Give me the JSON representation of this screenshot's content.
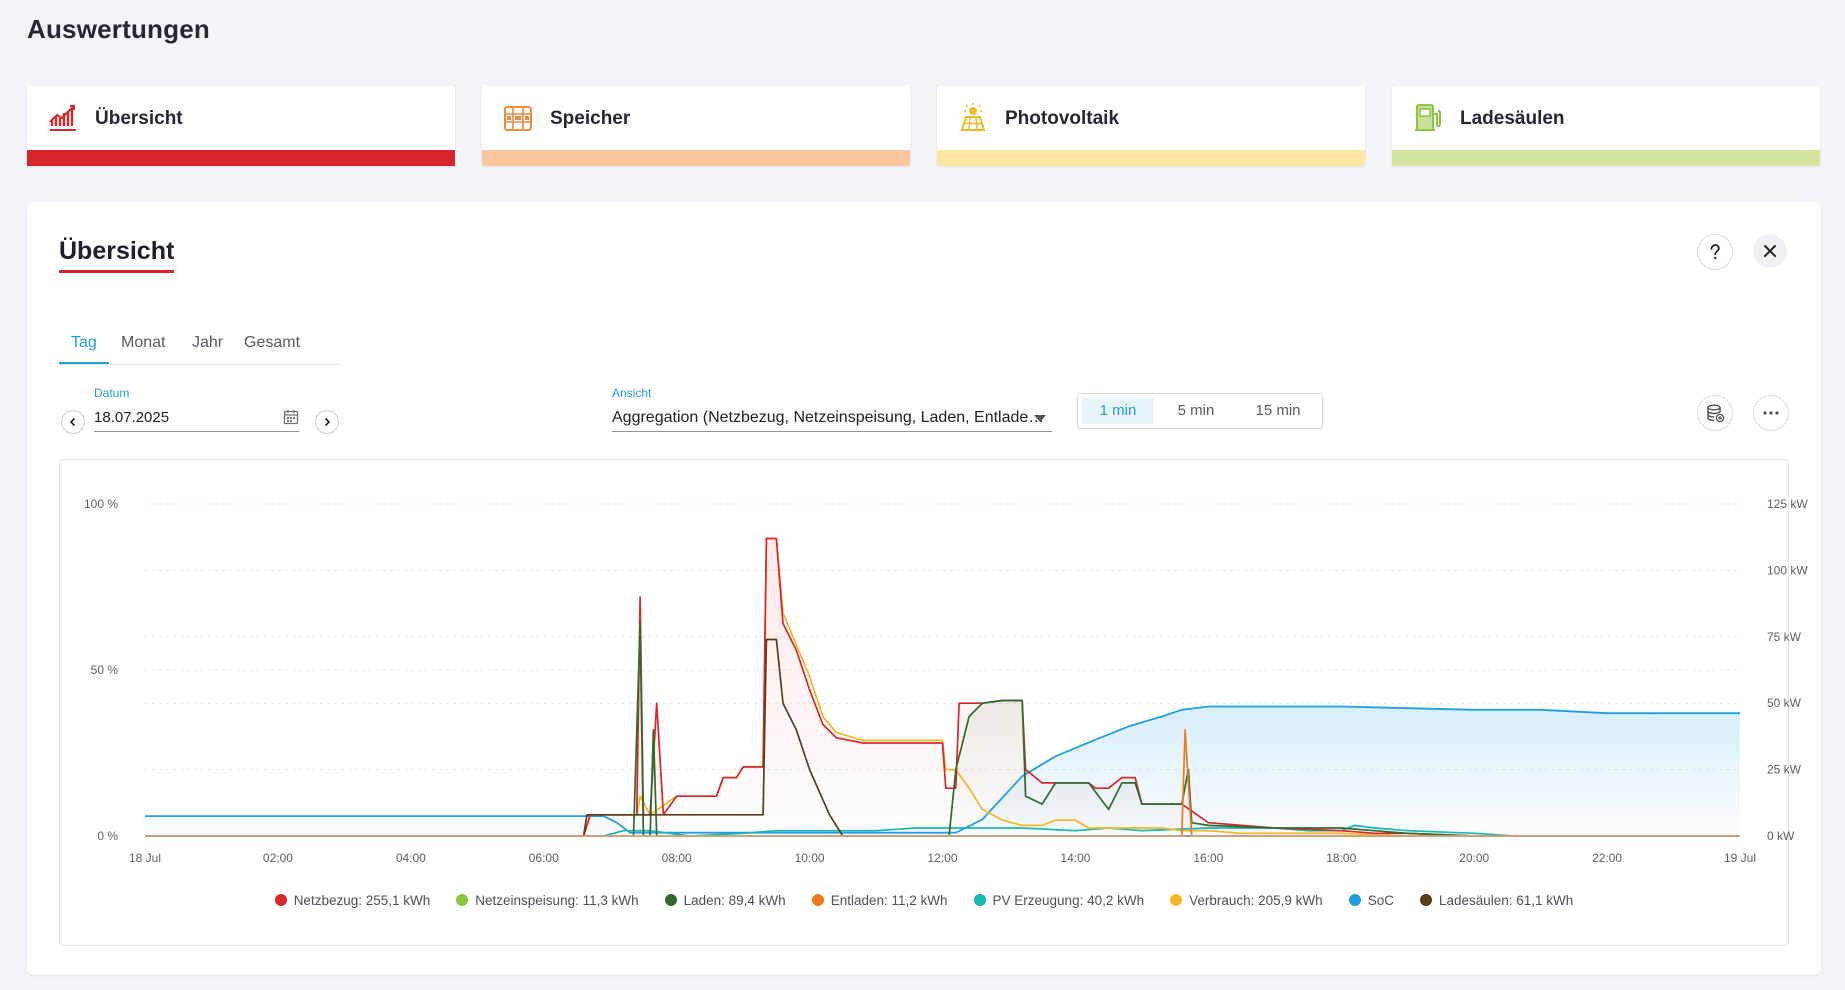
{
  "page": {
    "title": "Auswertungen"
  },
  "cards": [
    {
      "label": "Übersicht",
      "icon": "chart-line-icon",
      "color": "#d9262b",
      "bar_color": "#d9262b"
    },
    {
      "label": "Speicher",
      "icon": "battery-storage-icon",
      "color": "#f08a3c",
      "bar_color": "#fbc69c"
    },
    {
      "label": "Photovoltaik",
      "icon": "solar-panel-icon",
      "color": "#f4b625",
      "bar_color": "#fde5a2"
    },
    {
      "label": "Ladesäulen",
      "icon": "charging-station-icon",
      "color": "#8cc63e",
      "bar_color": "#d2e6a0"
    }
  ],
  "panel": {
    "title": "Übersicht",
    "help_icon": "question-icon",
    "close_icon": "close-icon",
    "tabs": [
      "Tag",
      "Monat",
      "Jahr",
      "Gesamt"
    ],
    "active_tab": "Tag",
    "date": {
      "label": "Datum",
      "value": "18.07.2025",
      "icon": "calendar-icon"
    },
    "view": {
      "label": "Ansicht",
      "value": "Aggregation (Netzbezug, Netzeinspeisung, Laden, Entlade…"
    },
    "resolutions": [
      "1 min",
      "5 min",
      "15 min"
    ],
    "active_resolution": "1 min",
    "db_icon": "database-icon",
    "more_icon": "more-icon"
  },
  "chart_data": {
    "type": "line",
    "x_ticks": [
      "18 Jul",
      "02:00",
      "04:00",
      "06:00",
      "08:00",
      "10:00",
      "12:00",
      "14:00",
      "16:00",
      "18:00",
      "20:00",
      "22:00",
      "19 Jul"
    ],
    "y_left_ticks": [
      "0 %",
      "50 %",
      "100 %"
    ],
    "y_right_ticks": [
      "0 kW",
      "25 kW",
      "50 kW",
      "75 kW",
      "100 kW",
      "125 kW"
    ],
    "y_left_range": [
      0,
      100
    ],
    "y_right_range": [
      0,
      125
    ],
    "grid": true,
    "legend_position": "bottom",
    "legend": [
      {
        "label": "Netzbezug: 255,1 kWh",
        "color": "#d9262b"
      },
      {
        "label": "Netzeinspeisung: 11,3 kWh",
        "color": "#8cc63e"
      },
      {
        "label": "Laden: 89,4 kWh",
        "color": "#2e6b2e"
      },
      {
        "label": "Entladen: 11,2 kWh",
        "color": "#f07a1a"
      },
      {
        "label": "PV Erzeugung: 40,2 kWh",
        "color": "#18b5b5"
      },
      {
        "label": "Verbrauch: 205,9 kWh",
        "color": "#f4b625"
      },
      {
        "label": "SoC",
        "color": "#1f9fe0"
      },
      {
        "label": "Ladesäulen: 61,1 kWh",
        "color": "#5a3e1c"
      }
    ],
    "series": [
      {
        "name": "SoC",
        "axis": "left",
        "color": "#1f9fe0",
        "points": [
          [
            0,
            6
          ],
          [
            6.9,
            6
          ],
          [
            7.1,
            4
          ],
          [
            7.3,
            1
          ],
          [
            9.8,
            1
          ],
          [
            12.2,
            1
          ],
          [
            12.6,
            5
          ],
          [
            13.2,
            18
          ],
          [
            13.7,
            24
          ],
          [
            14.3,
            29
          ],
          [
            14.8,
            33
          ],
          [
            15.3,
            36
          ],
          [
            15.6,
            38
          ],
          [
            16,
            39
          ],
          [
            17,
            39
          ],
          [
            18,
            39
          ],
          [
            19,
            38.5
          ],
          [
            20,
            38
          ],
          [
            21,
            38
          ],
          [
            22,
            37
          ],
          [
            24,
            37
          ]
        ]
      },
      {
        "name": "Netzbezug",
        "axis": "right",
        "color": "#d9262b",
        "points": [
          [
            0,
            0
          ],
          [
            6.6,
            0
          ],
          [
            6.7,
            8
          ],
          [
            7.4,
            8
          ],
          [
            7.45,
            90
          ],
          [
            7.5,
            8
          ],
          [
            7.6,
            8
          ],
          [
            7.7,
            50
          ],
          [
            7.8,
            8
          ],
          [
            8,
            15
          ],
          [
            8.6,
            15
          ],
          [
            8.7,
            22
          ],
          [
            8.9,
            22
          ],
          [
            9,
            26
          ],
          [
            9.3,
            26
          ],
          [
            9.35,
            112
          ],
          [
            9.5,
            112
          ],
          [
            9.6,
            80
          ],
          [
            9.8,
            70
          ],
          [
            10,
            55
          ],
          [
            10.2,
            42
          ],
          [
            10.4,
            37
          ],
          [
            10.8,
            35
          ],
          [
            11.6,
            35
          ],
          [
            12,
            35
          ],
          [
            12.05,
            18
          ],
          [
            12.2,
            18
          ],
          [
            12.25,
            50
          ],
          [
            12.4,
            50
          ],
          [
            12.6,
            50
          ],
          [
            12.9,
            51
          ],
          [
            13.2,
            51
          ],
          [
            13.25,
            25
          ],
          [
            13.5,
            20
          ],
          [
            13.7,
            20
          ],
          [
            14.2,
            20
          ],
          [
            14.3,
            18
          ],
          [
            14.5,
            18
          ],
          [
            14.7,
            22
          ],
          [
            14.9,
            22
          ],
          [
            15,
            12
          ],
          [
            15.3,
            12
          ],
          [
            15.6,
            12
          ],
          [
            16,
            5
          ],
          [
            16.5,
            4
          ],
          [
            17,
            3
          ],
          [
            18,
            2
          ],
          [
            18.5,
            1
          ],
          [
            19,
            1
          ],
          [
            20,
            0
          ],
          [
            24,
            0
          ]
        ]
      },
      {
        "name": "Verbrauch",
        "axis": "right",
        "color": "#f4b625",
        "points": [
          [
            0,
            0
          ],
          [
            6.6,
            0
          ],
          [
            6.7,
            8
          ],
          [
            7.4,
            8
          ],
          [
            7.45,
            15
          ],
          [
            7.6,
            8
          ],
          [
            8,
            15
          ],
          [
            8.6,
            15
          ],
          [
            8.7,
            22
          ],
          [
            8.9,
            22
          ],
          [
            9,
            26
          ],
          [
            9.3,
            26
          ],
          [
            9.35,
            112
          ],
          [
            9.5,
            112
          ],
          [
            9.6,
            84
          ],
          [
            9.8,
            72
          ],
          [
            10,
            60
          ],
          [
            10.2,
            45
          ],
          [
            10.4,
            39
          ],
          [
            10.8,
            36
          ],
          [
            11.6,
            36
          ],
          [
            12,
            36
          ],
          [
            12.05,
            25
          ],
          [
            12.2,
            25
          ],
          [
            12.4,
            18
          ],
          [
            12.6,
            10
          ],
          [
            12.9,
            6
          ],
          [
            13.2,
            4
          ],
          [
            13.5,
            4
          ],
          [
            13.7,
            6
          ],
          [
            14,
            6
          ],
          [
            14.2,
            3
          ],
          [
            14.5,
            3
          ],
          [
            15,
            3
          ],
          [
            15.3,
            3
          ],
          [
            15.6,
            2
          ],
          [
            16,
            2
          ],
          [
            16.5,
            1
          ],
          [
            18,
            1
          ],
          [
            19,
            0
          ],
          [
            24,
            0
          ]
        ]
      },
      {
        "name": "Laden",
        "axis": "right",
        "color": "#2e6b2e",
        "points": [
          [
            0,
            0
          ],
          [
            7.35,
            0
          ],
          [
            7.45,
            80
          ],
          [
            7.5,
            0
          ],
          [
            7.6,
            0
          ],
          [
            7.65,
            40
          ],
          [
            7.7,
            0
          ],
          [
            12.1,
            0
          ],
          [
            12.2,
            25
          ],
          [
            12.4,
            45
          ],
          [
            12.6,
            50
          ],
          [
            12.9,
            51
          ],
          [
            13.2,
            51
          ],
          [
            13.25,
            15
          ],
          [
            13.5,
            12
          ],
          [
            13.7,
            20
          ],
          [
            14.2,
            20
          ],
          [
            14.5,
            10
          ],
          [
            14.7,
            20
          ],
          [
            14.9,
            20
          ],
          [
            15,
            12
          ],
          [
            15.3,
            12
          ],
          [
            15.6,
            12
          ],
          [
            15.7,
            25
          ],
          [
            15.75,
            5
          ],
          [
            16,
            4
          ],
          [
            17,
            3
          ],
          [
            18,
            3
          ],
          [
            18.5,
            2
          ],
          [
            19,
            1
          ],
          [
            20,
            0
          ],
          [
            24,
            0
          ]
        ]
      },
      {
        "name": "Entladen",
        "axis": "right",
        "color": "#f07a1a",
        "points": [
          [
            0,
            0
          ],
          [
            15.6,
            0
          ],
          [
            15.65,
            40
          ],
          [
            15.75,
            0
          ],
          [
            24,
            0
          ]
        ]
      },
      {
        "name": "PV Erzeugung",
        "axis": "right",
        "color": "#18b5b5",
        "points": [
          [
            0,
            0
          ],
          [
            6.9,
            0
          ],
          [
            7.2,
            2
          ],
          [
            7.6,
            2
          ],
          [
            8.2,
            0
          ],
          [
            9,
            1
          ],
          [
            9.5,
            2
          ],
          [
            10,
            2
          ],
          [
            11,
            2
          ],
          [
            11.6,
            3
          ],
          [
            12,
            3
          ],
          [
            12.5,
            3
          ],
          [
            13.2,
            3
          ],
          [
            14,
            2
          ],
          [
            14.5,
            3
          ],
          [
            15,
            2
          ],
          [
            16,
            3
          ],
          [
            17,
            3
          ],
          [
            17.5,
            2
          ],
          [
            18,
            2
          ],
          [
            18.2,
            4
          ],
          [
            18.5,
            3
          ],
          [
            19,
            2
          ],
          [
            20,
            1
          ],
          [
            20.6,
            0
          ],
          [
            24,
            0
          ]
        ]
      },
      {
        "name": "Ladesäulen",
        "axis": "right",
        "color": "#5a3e1c",
        "points": [
          [
            0,
            0
          ],
          [
            6.6,
            0
          ],
          [
            6.65,
            8
          ],
          [
            7.7,
            8
          ],
          [
            7.8,
            8
          ],
          [
            8,
            8
          ],
          [
            9.3,
            8
          ],
          [
            9.35,
            74
          ],
          [
            9.5,
            74
          ],
          [
            9.6,
            50
          ],
          [
            9.8,
            40
          ],
          [
            10,
            25
          ],
          [
            10.3,
            8
          ],
          [
            10.5,
            0
          ],
          [
            24,
            0
          ]
        ]
      }
    ]
  }
}
